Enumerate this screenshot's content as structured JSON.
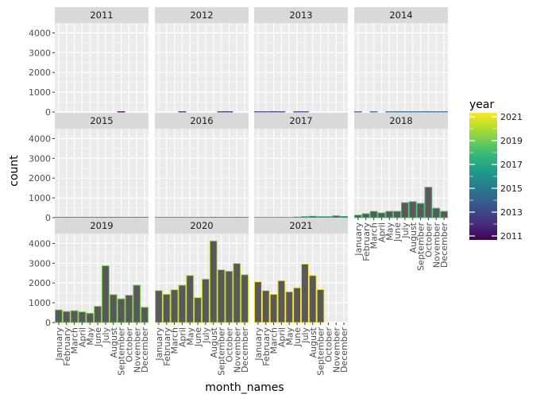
{
  "chart_data": {
    "type": "bar",
    "facet_by": "year",
    "xlabel": "month_names",
    "ylabel": "count",
    "ylim": [
      0,
      4500
    ],
    "y_ticks": [
      0,
      1000,
      2000,
      3000,
      4000
    ],
    "y_tick_labels": [
      "0",
      "1000",
      "2000",
      "3000",
      "4000"
    ],
    "grid": true,
    "categories": [
      "January",
      "February",
      "March",
      "April",
      "May",
      "June",
      "July",
      "August",
      "September",
      "October",
      "November",
      "December"
    ],
    "facets": [
      {
        "label": "2011",
        "year": 2011,
        "values": [
          null,
          null,
          null,
          null,
          null,
          null,
          null,
          null,
          0,
          null,
          null,
          null
        ]
      },
      {
        "label": "2012",
        "year": 2012,
        "values": [
          null,
          null,
          null,
          0,
          null,
          null,
          null,
          null,
          0,
          0,
          null,
          null
        ]
      },
      {
        "label": "2013",
        "year": 2013,
        "values": [
          0,
          0,
          20,
          10,
          null,
          0,
          0,
          null,
          null,
          null,
          null,
          null
        ]
      },
      {
        "label": "2014",
        "year": 2014,
        "values": [
          0,
          null,
          0,
          null,
          0,
          0,
          0,
          0,
          0,
          0,
          0,
          0
        ]
      },
      {
        "label": "2015",
        "year": 2015,
        "values": [
          0,
          0,
          0,
          0,
          0,
          0,
          0,
          0,
          0,
          0,
          0,
          0
        ]
      },
      {
        "label": "2016",
        "year": 2016,
        "values": [
          0,
          0,
          0,
          0,
          0,
          0,
          10,
          20,
          10,
          10,
          20,
          10
        ]
      },
      {
        "label": "2017",
        "year": 2017,
        "values": [
          0,
          0,
          0,
          0,
          10,
          30,
          50,
          70,
          50,
          50,
          90,
          60
        ]
      },
      {
        "label": "2018",
        "year": 2018,
        "values": [
          130,
          200,
          320,
          240,
          320,
          320,
          760,
          810,
          720,
          1540,
          480,
          320
        ]
      },
      {
        "label": "2019",
        "year": 2019,
        "values": [
          640,
          560,
          600,
          540,
          470,
          820,
          2870,
          1410,
          1200,
          1380,
          1890,
          770
        ]
      },
      {
        "label": "2020",
        "year": 2020,
        "values": [
          1620,
          1430,
          1660,
          1890,
          2380,
          1260,
          2200,
          4130,
          2670,
          2600,
          2990,
          2420
        ]
      },
      {
        "label": "2021",
        "year": 2021,
        "values": [
          2060,
          1620,
          1430,
          2120,
          1560,
          1760,
          2960,
          2380,
          1670,
          null,
          null,
          null
        ]
      }
    ],
    "legend": {
      "title": "year",
      "placement": "right",
      "labels": [
        "2011",
        "2013",
        "2015",
        "2017",
        "2019",
        "2021"
      ],
      "min": 2011,
      "max": 2021
    },
    "bar_fill": "#595959",
    "colors": {
      "panel_bg": "#ebebeb",
      "strip_bg": "#d9d9d9",
      "grid": "#ffffff",
      "viridis": [
        "#440154",
        "#482878",
        "#3e4989",
        "#31688e",
        "#26828e",
        "#1f9e89",
        "#35b779",
        "#6ece58",
        "#b5de2b",
        "#fde725"
      ]
    }
  }
}
